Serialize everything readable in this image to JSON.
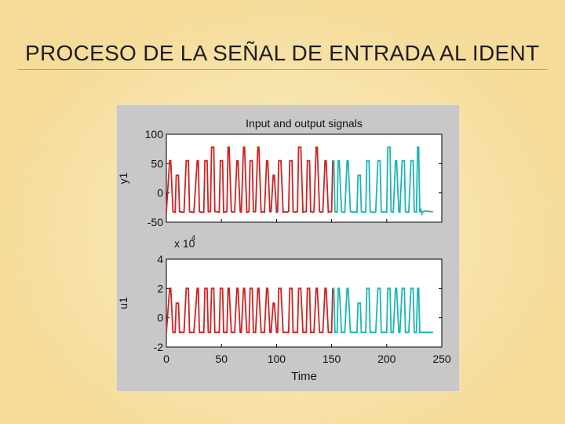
{
  "slide": {
    "title": "PROCESO DE LA SEÑAL DE ENTRADA AL IDENT"
  },
  "colors": {
    "estimation": "#d42020",
    "validation": "#1bb6b4",
    "figure_bg": "#c8c8c8",
    "axes_bg": "#ffffff"
  },
  "chart_data": [
    {
      "type": "line",
      "title": "Input and output signals",
      "ylabel": "y1",
      "xlabel": "",
      "xlim": [
        0,
        250
      ],
      "ylim": [
        -50,
        100
      ],
      "yticks": [
        "100",
        "50",
        "0",
        "-50"
      ],
      "xticks": [],
      "grid": false,
      "series": [
        {
          "color": "#d42020",
          "x": [
            0,
            3,
            4,
            6,
            8,
            9,
            11,
            12,
            15,
            16,
            18,
            20,
            21,
            24,
            25,
            28,
            29,
            30,
            32,
            34,
            35,
            37,
            38,
            40,
            41,
            43,
            44,
            46,
            48,
            49,
            51,
            52,
            55,
            56,
            57,
            59,
            61,
            62,
            64,
            65,
            67,
            68,
            70,
            71,
            73,
            75,
            76,
            78,
            79,
            81,
            83,
            84,
            86,
            88,
            89,
            91,
            92,
            94,
            95,
            97,
            98,
            100,
            101,
            102,
            104,
            106,
            107,
            109,
            111,
            112,
            114,
            115,
            117,
            119,
            120,
            122,
            124,
            125,
            127,
            128,
            130,
            131,
            133,
            134,
            136,
            137,
            139,
            141,
            142,
            144,
            145,
            147,
            148,
            150,
            151
          ],
          "y": [
            -32,
            55,
            55,
            -32,
            -33,
            30,
            30,
            -32,
            -33,
            -33,
            55,
            55,
            -32,
            -33,
            -33,
            55,
            55,
            -32,
            -33,
            -33,
            55,
            55,
            -32,
            -32,
            78,
            78,
            -32,
            -32,
            -33,
            55,
            55,
            -33,
            -32,
            78,
            78,
            -32,
            -33,
            -32,
            55,
            55,
            -32,
            -33,
            78,
            78,
            -33,
            -32,
            55,
            55,
            -32,
            -32,
            78,
            78,
            -33,
            -32,
            -33,
            55,
            55,
            -32,
            -32,
            30,
            30,
            -33,
            -32,
            55,
            55,
            -33,
            -32,
            -33,
            -32,
            55,
            55,
            -32,
            -33,
            -32,
            78,
            78,
            -33,
            -32,
            -32,
            55,
            55,
            -32,
            -33,
            -32,
            78,
            78,
            -32,
            -33,
            -32,
            55,
            55,
            -33,
            -32,
            -32,
            55
          ]
        },
        {
          "color": "#1bb6b4",
          "x": [
            151,
            152,
            153,
            155,
            156,
            157,
            159,
            160,
            162,
            164,
            165,
            167,
            169,
            170,
            172,
            173,
            174,
            176,
            177,
            179,
            181,
            182,
            184,
            185,
            187,
            189,
            190,
            192,
            194,
            195,
            197,
            198,
            200,
            201,
            203,
            204,
            206,
            208,
            209,
            211,
            212,
            214,
            216,
            217,
            219,
            220,
            222,
            224,
            225,
            227,
            228,
            229,
            230,
            231,
            232,
            233,
            236,
            240,
            242
          ],
          "y": [
            55,
            55,
            -32,
            -33,
            55,
            55,
            -32,
            -33,
            -33,
            55,
            55,
            -32,
            -33,
            -33,
            -32,
            -33,
            30,
            30,
            -32,
            -33,
            -33,
            55,
            55,
            -32,
            -33,
            -33,
            -32,
            55,
            55,
            -32,
            -33,
            -32,
            -33,
            78,
            78,
            -32,
            -33,
            55,
            55,
            -32,
            -33,
            55,
            55,
            -32,
            -33,
            -33,
            55,
            55,
            -32,
            -33,
            78,
            78,
            -33,
            -29,
            -36,
            -32,
            -31,
            -32,
            -32
          ]
        }
      ]
    },
    {
      "type": "line",
      "title": "",
      "ylabel": "u1",
      "xlabel": "Time",
      "multiplier": "x 10",
      "multiplier_exp": "4",
      "xlim": [
        0,
        250
      ],
      "ylim": [
        -2,
        4
      ],
      "yticks": [
        "4",
        "2",
        "0",
        "-2"
      ],
      "xticks": [
        "0",
        "50",
        "100",
        "150",
        "200",
        "250"
      ],
      "grid": false,
      "series": [
        {
          "color": "#d42020",
          "x": [
            0,
            3,
            4,
            6,
            8,
            9,
            11,
            12,
            15,
            16,
            18,
            20,
            21,
            24,
            25,
            28,
            29,
            30,
            32,
            34,
            35,
            37,
            38,
            40,
            41,
            43,
            44,
            46,
            48,
            49,
            51,
            52,
            55,
            56,
            57,
            59,
            61,
            62,
            64,
            65,
            67,
            68,
            70,
            71,
            73,
            75,
            76,
            78,
            79,
            81,
            83,
            84,
            86,
            88,
            89,
            91,
            92,
            94,
            95,
            97,
            98,
            100,
            101,
            102,
            104,
            106,
            107,
            109,
            111,
            112,
            114,
            115,
            117,
            119,
            120,
            122,
            124,
            125,
            127,
            128,
            130,
            131,
            133,
            134,
            136,
            137,
            139,
            141,
            142,
            144,
            145,
            147,
            148,
            150,
            151
          ],
          "y": [
            -1,
            2,
            2,
            -1,
            -1,
            1,
            1,
            -1,
            -1,
            -1,
            2,
            2,
            -1,
            -1,
            -1,
            2,
            2,
            -1,
            -1,
            -1,
            2,
            2,
            -1,
            -1,
            2,
            2,
            -1,
            -1,
            -1,
            2,
            2,
            -1,
            -1,
            2,
            2,
            -1,
            -1,
            -1,
            2,
            2,
            -1,
            -1,
            2,
            2,
            -1,
            -1,
            2,
            2,
            -1,
            -1,
            2,
            2,
            -1,
            -1,
            -1,
            2,
            2,
            -1,
            -1,
            1,
            1,
            -1,
            -1,
            2,
            2,
            -1,
            -1,
            -1,
            -1,
            2,
            2,
            -1,
            -1,
            -1,
            2,
            2,
            -1,
            -1,
            -1,
            2,
            2,
            -1,
            -1,
            -1,
            2,
            2,
            -1,
            -1,
            -1,
            2,
            2,
            -1,
            -1,
            -1,
            2
          ]
        },
        {
          "color": "#1bb6b4",
          "x": [
            151,
            152,
            153,
            155,
            156,
            157,
            159,
            160,
            162,
            164,
            165,
            167,
            169,
            170,
            172,
            173,
            174,
            176,
            177,
            179,
            181,
            182,
            184,
            185,
            187,
            189,
            190,
            192,
            194,
            195,
            197,
            198,
            200,
            201,
            203,
            204,
            206,
            208,
            209,
            211,
            212,
            214,
            216,
            217,
            219,
            220,
            222,
            224,
            225,
            227,
            228,
            229,
            230,
            242
          ],
          "y": [
            2,
            2,
            -1,
            -1,
            2,
            2,
            -1,
            -1,
            -1,
            2,
            2,
            -1,
            -1,
            -1,
            -1,
            -1,
            1,
            1,
            -1,
            -1,
            -1,
            2,
            2,
            -1,
            -1,
            -1,
            -1,
            2,
            2,
            -1,
            -1,
            -1,
            -1,
            2,
            2,
            -1,
            -1,
            2,
            2,
            -1,
            -1,
            2,
            2,
            -1,
            -1,
            -1,
            2,
            2,
            -1,
            -1,
            2,
            2,
            -1,
            -1
          ]
        }
      ]
    }
  ]
}
